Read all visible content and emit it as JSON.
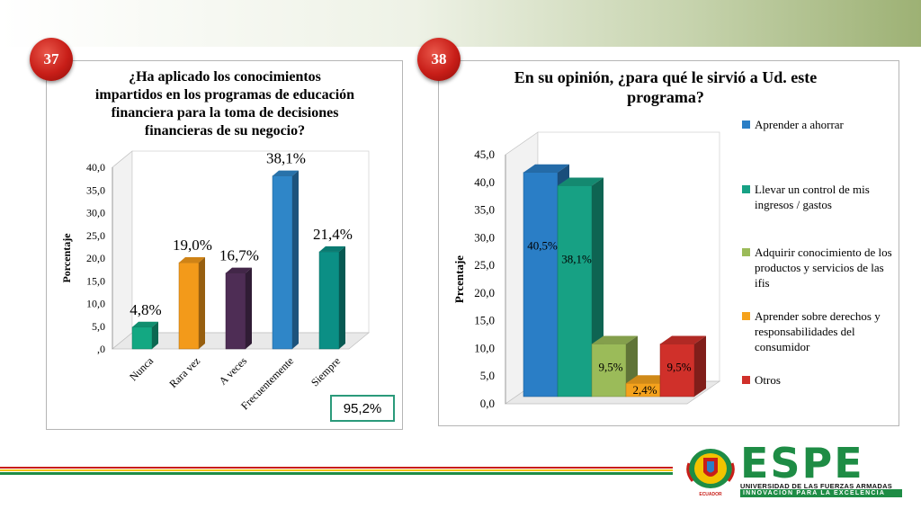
{
  "slides": {
    "left": {
      "number": "37"
    },
    "right": {
      "number": "38"
    }
  },
  "chart_data": [
    {
      "type": "bar",
      "title": "¿Ha aplicado los conocimientos impartidos en los programas de educación financiera para la toma de decisiones financieras de su negocio?",
      "title_lines": [
        "¿Ha aplicado los conocimientos",
        "impartidos en los programas de educación",
        "financiera para la toma de decisiones",
        "financieras de su negocio?"
      ],
      "ylabel": "Porcentaje",
      "xlabel": "",
      "ylim": [
        0,
        40
      ],
      "yticks": [
        ",0",
        "5,0",
        "10,0",
        "15,0",
        "20,0",
        "25,0",
        "30,0",
        "35,0",
        "40,0"
      ],
      "grid": false,
      "categories": [
        "Nunca",
        "Rara vez",
        "A veces",
        "Frecuentemente",
        "Siempre"
      ],
      "values": [
        4.8,
        19.0,
        16.7,
        38.1,
        21.4
      ],
      "value_labels": [
        "4,8%",
        "19,0%",
        "16,7%",
        "38,1%",
        "21,4%"
      ],
      "colors": [
        "#13a882",
        "#f39a1a",
        "#4e2d55",
        "#2f86c8",
        "#0b8f85"
      ],
      "annotation": "95,2%"
    },
    {
      "type": "bar",
      "title": "En su opinión, ¿para qué le sirvió a Ud. este programa?",
      "title_lines": [
        "En su opinión, ¿para qué le sirvió a Ud. este",
        "programa?"
      ],
      "ylabel": "Prcentaje",
      "xlabel": "",
      "ylim": [
        0,
        45
      ],
      "yticks": [
        "0,0",
        "5,0",
        "10,0",
        "15,0",
        "20,0",
        "25,0",
        "30,0",
        "35,0",
        "40,0",
        "45,0"
      ],
      "grid": false,
      "legend_position": "right",
      "series": [
        {
          "name": "Aprender a ahorrar",
          "value": 40.5,
          "label": "40,5%",
          "color": "#2a7ec6"
        },
        {
          "name": "Llevar un control de mis ingresos / gastos",
          "value": 38.1,
          "label": "38,1%",
          "color": "#17a184"
        },
        {
          "name": "Adquirir conocimiento de los productos y servicios de las ifis",
          "value": 9.5,
          "label": "9,5%",
          "color": "#9bbb59"
        },
        {
          "name": "Aprender sobre derechos y responsabilidades del consumidor",
          "value": 2.4,
          "label": "2,4%",
          "color": "#f5a21c"
        },
        {
          "name": "Otros",
          "value": 9.5,
          "label": "9,5%",
          "color": "#d0302a"
        }
      ]
    }
  ],
  "footer": {
    "logo_name": "ESPE",
    "university": "UNIVERSIDAD DE LAS FUERZAS ARMADAS",
    "tagline": "INNOVACIÓN PARA LA EXCELENCIA",
    "seal_text": "ECUADOR",
    "colors": {
      "green": "#1e8c45",
      "red": "#c81e18",
      "yellow": "#f2c300"
    }
  }
}
